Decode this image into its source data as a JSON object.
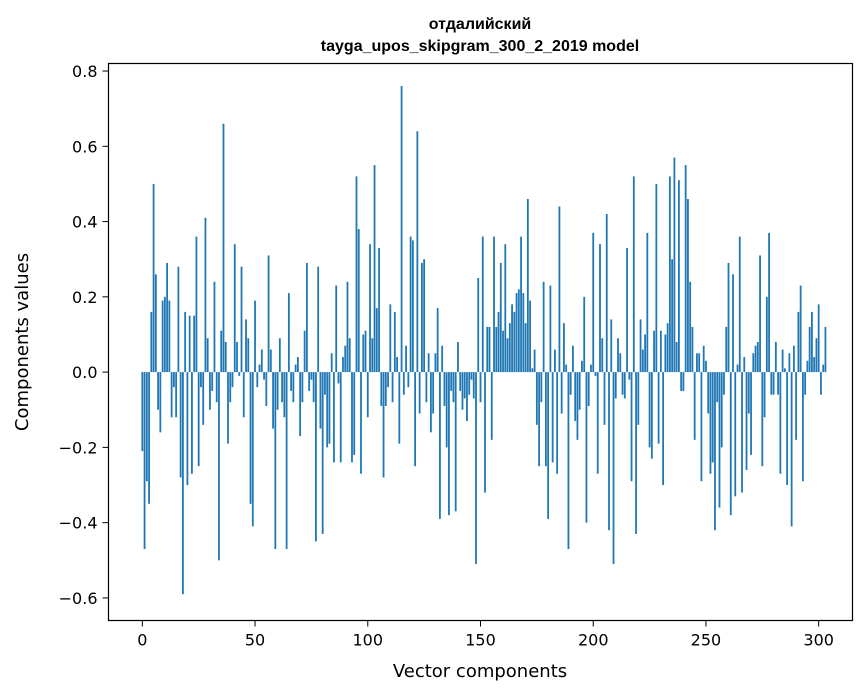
{
  "chart_data": {
    "type": "bar",
    "title": [
      "отдалийский",
      "tayga_upos_skipgram_300_2_2019 model"
    ],
    "xlabel": "Vector components",
    "ylabel": "Components values",
    "xlim": [
      -15,
      315
    ],
    "ylim": [
      -0.66,
      0.82
    ],
    "xticks": [
      0,
      50,
      100,
      150,
      200,
      250,
      300
    ],
    "xtick_labels": [
      "0",
      "50",
      "100",
      "150",
      "200",
      "250",
      "300"
    ],
    "yticks": [
      -0.6,
      -0.4,
      -0.2,
      0.0,
      0.2,
      0.4,
      0.6,
      0.8
    ],
    "ytick_labels": [
      "−0.6",
      "−0.4",
      "−0.2",
      "0.0",
      "0.2",
      "0.4",
      "0.6",
      "0.8"
    ],
    "grid": false,
    "bar_color": "#1f77b4",
    "values": [
      -0.21,
      -0.47,
      -0.29,
      -0.35,
      0.16,
      0.5,
      0.26,
      -0.1,
      -0.16,
      0.19,
      0.2,
      0.29,
      0.19,
      -0.12,
      -0.04,
      -0.12,
      0.28,
      -0.28,
      -0.59,
      0.16,
      -0.3,
      0.15,
      -0.27,
      0.15,
      0.36,
      -0.25,
      -0.04,
      -0.14,
      0.41,
      0.09,
      -0.1,
      -0.05,
      0.24,
      -0.08,
      -0.5,
      0.11,
      0.66,
      0.08,
      -0.19,
      -0.08,
      -0.04,
      0.34,
      0.08,
      -0.01,
      0.28,
      -0.12,
      0.14,
      0.09,
      -0.35,
      -0.41,
      0.19,
      -0.04,
      0.02,
      0.06,
      -0.02,
      -0.09,
      0.31,
      0.06,
      -0.15,
      -0.47,
      -0.1,
      0.09,
      -0.08,
      -0.12,
      -0.47,
      0.21,
      -0.05,
      -0.08,
      0.02,
      0.04,
      -0.17,
      -0.08,
      0.11,
      0.29,
      -0.05,
      -0.02,
      -0.08,
      -0.45,
      0.28,
      -0.15,
      -0.43,
      -0.06,
      -0.2,
      -0.19,
      0.05,
      -0.24,
      0.23,
      -0.03,
      -0.24,
      0.04,
      0.07,
      0.24,
      0.09,
      -0.24,
      -0.22,
      0.52,
      0.38,
      -0.27,
      0.1,
      0.11,
      -0.12,
      0.34,
      0.09,
      0.55,
      0.17,
      0.33,
      -0.09,
      -0.28,
      -0.09,
      -0.04,
      0.18,
      -0.08,
      0.16,
      0.04,
      -0.19,
      0.76,
      -0.06,
      0.07,
      -0.04,
      0.36,
      0.35,
      -0.25,
      0.64,
      -0.11,
      0.29,
      0.3,
      -0.08,
      0.05,
      -0.16,
      -0.11,
      0.05,
      0.17,
      -0.39,
      0.07,
      -0.09,
      -0.2,
      -0.38,
      -0.05,
      -0.08,
      -0.37,
      0.08,
      -0.05,
      -0.1,
      -0.07,
      -0.13,
      -0.06,
      -0.02,
      -0.07,
      -0.51,
      0.25,
      -0.08,
      0.36,
      -0.32,
      0.12,
      0.12,
      -0.18,
      0.36,
      0.12,
      0.16,
      0.29,
      0.11,
      0.34,
      0.09,
      0.13,
      0.18,
      0.16,
      0.21,
      0.22,
      0.36,
      0.21,
      0.13,
      0.46,
      0.19,
      0.01,
      0.06,
      -0.14,
      -0.25,
      -0.08,
      0.24,
      -0.25,
      -0.39,
      0.23,
      -0.24,
      0.06,
      -0.27,
      0.44,
      -0.11,
      0.13,
      0.02,
      -0.47,
      -0.06,
      0.07,
      -0.13,
      -0.18,
      -0.1,
      0.03,
      0.2,
      -0.4,
      -0.09,
      0.02,
      0.37,
      -0.01,
      -0.27,
      0.34,
      0.09,
      -0.14,
      0.42,
      -0.42,
      0.14,
      -0.51,
      -0.07,
      0.09,
      0.05,
      -0.06,
      -0.07,
      0.33,
      -0.02,
      -0.29,
      0.52,
      -0.43,
      -0.14,
      0.14,
      0.06,
      0.1,
      0.37,
      -0.2,
      -0.23,
      0.11,
      0.5,
      -0.19,
      0.11,
      -0.3,
      0.1,
      0.13,
      0.52,
      0.3,
      0.57,
      0.08,
      0.51,
      -0.05,
      -0.05,
      0.55,
      0.46,
      0.24,
      0.12,
      -0.18,
      0.05,
      0.05,
      -0.29,
      0.07,
      0.03,
      -0.11,
      -0.27,
      -0.24,
      -0.42,
      -0.08,
      -0.36,
      -0.2,
      -0.06,
      0.12,
      0.29,
      -0.38,
      0.26,
      -0.33,
      0.02,
      0.36,
      -0.32,
      0.04,
      -0.26,
      -0.11,
      -0.22,
      0.05,
      0.07,
      0.08,
      0.31,
      -0.25,
      -0.12,
      0.2,
      0.37,
      -0.06,
      -0.06,
      0.08,
      -0.06,
      -0.27,
      0.06,
      0.01,
      -0.3,
      0.05,
      -0.41,
      0.07,
      -0.18,
      0.16,
      0.23,
      -0.29,
      -0.06,
      0.03,
      0.12,
      0.16,
      0.04,
      0.09,
      0.18,
      -0.06,
      0.02,
      0.12
    ]
  }
}
